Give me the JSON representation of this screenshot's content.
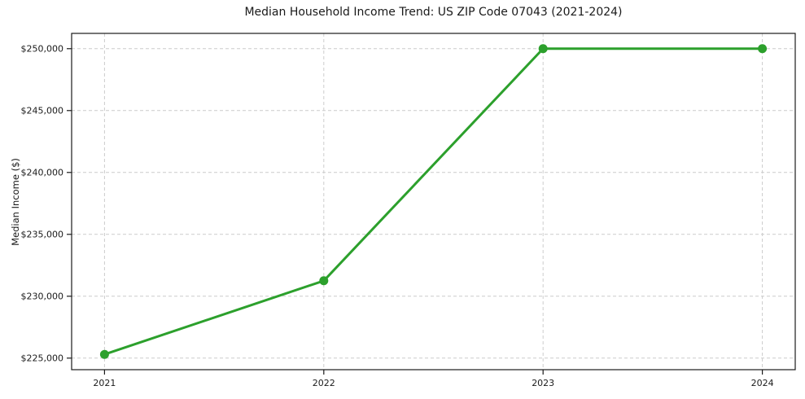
{
  "chart_data": {
    "type": "line",
    "title": "Median Household Income Trend: US ZIP Code 07043 (2021-2024)",
    "xlabel": "",
    "ylabel": "Median Income ($)",
    "categories": [
      "2021",
      "2022",
      "2023",
      "2024"
    ],
    "x": [
      2021,
      2022,
      2023,
      2024
    ],
    "series": [
      {
        "name": "Median Household Income",
        "values": [
          225300,
          231250,
          250000,
          250000
        ]
      }
    ],
    "yticks": [
      225000,
      230000,
      235000,
      240000,
      245000,
      250000
    ],
    "ytick_prefix": "$",
    "xlim": [
      2020.85,
      2024.15
    ],
    "ylim": [
      224065,
      251235
    ],
    "grid": true,
    "grid_style": "dashed",
    "legend_position": "none",
    "line_color": "#2ca02c",
    "marker_color": "#2ca02c",
    "grid_color": "#cccccc",
    "axis_color": "#1a1a1a",
    "text_color": "#1a1a1a",
    "background_color": "#ffffff"
  }
}
